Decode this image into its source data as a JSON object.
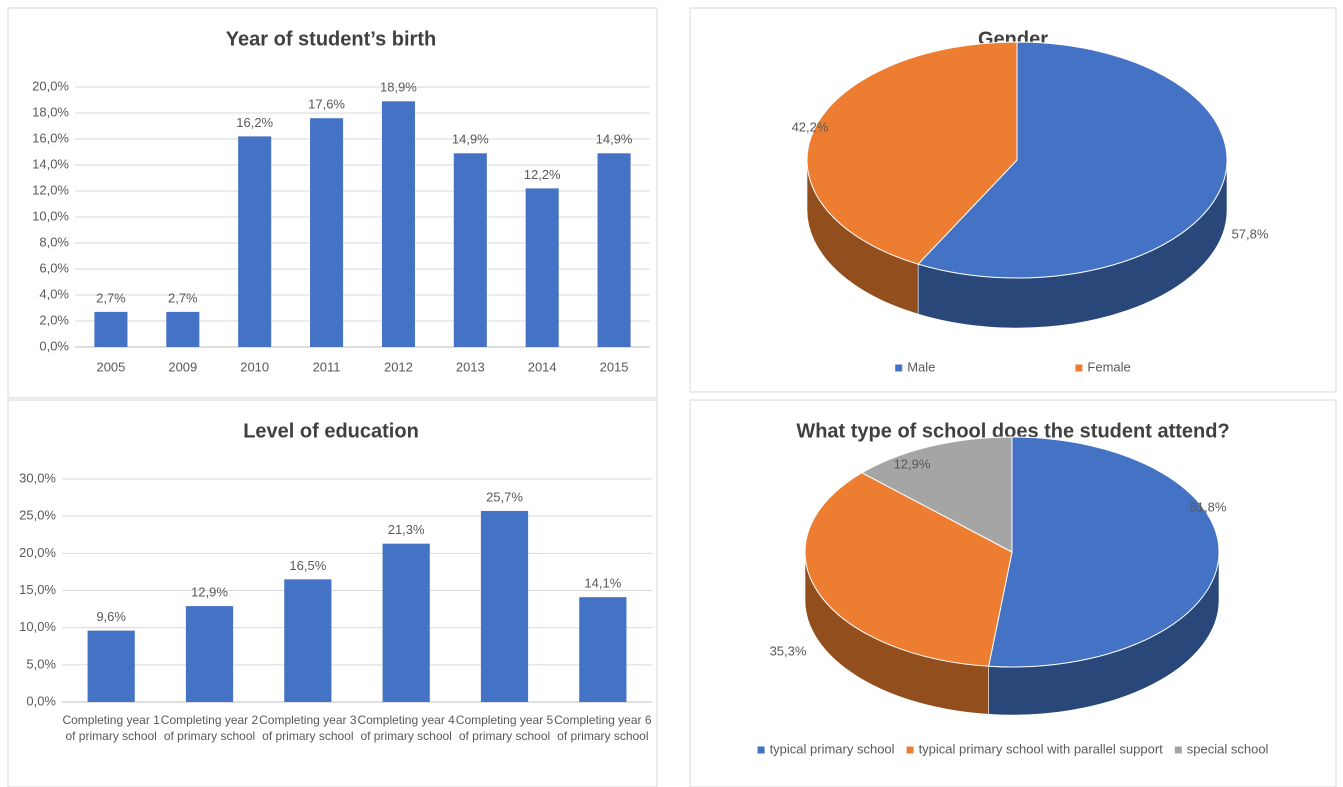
{
  "chart_data": [
    {
      "type": "bar",
      "title": "Year of student’s birth",
      "categories": [
        "2005",
        "2009",
        "2010",
        "2011",
        "2012",
        "2013",
        "2014",
        "2015"
      ],
      "values": [
        2.7,
        2.7,
        16.2,
        17.6,
        18.9,
        14.9,
        12.2,
        14.9
      ],
      "value_labels": [
        "2,7%",
        "2,7%",
        "16,2%",
        "17,6%",
        "18,9%",
        "14,9%",
        "12,2%",
        "14,9%"
      ],
      "color": "#4472c4",
      "ylim": [
        0,
        20
      ],
      "yticks": [
        {
          "value": 0,
          "label": "0,0%"
        },
        {
          "value": 2,
          "label": "2,0%"
        },
        {
          "value": 4,
          "label": "4,0%"
        },
        {
          "value": 6,
          "label": "6,0%"
        },
        {
          "value": 8,
          "label": "8,0%"
        },
        {
          "value": 10,
          "label": "10,0%"
        },
        {
          "value": 12,
          "label": "12,0%"
        },
        {
          "value": 14,
          "label": "14,0%"
        },
        {
          "value": 16,
          "label": "16,0%"
        },
        {
          "value": 18,
          "label": "18,0%"
        },
        {
          "value": 20,
          "label": "20,0%"
        }
      ],
      "grid": true
    },
    {
      "type": "pie",
      "title": "Gender",
      "categories": [
        "Male",
        "Female"
      ],
      "values": [
        57.8,
        42.2
      ],
      "value_labels": [
        "57,8%",
        "42,2%"
      ],
      "colors": [
        "#4472c4",
        "#ed7d31"
      ],
      "legend": "bottom"
    },
    {
      "type": "bar",
      "title": "Level of education",
      "categories": [
        "Completing year 1 of primary school",
        "Completing year 2 of primary school",
        "Completing year 3 of primary school",
        "Completing year 4 of primary school",
        "Completing year 5 of primary school",
        "Completing year 6 of primary school"
      ],
      "values": [
        9.6,
        12.9,
        16.5,
        21.3,
        25.7,
        14.1
      ],
      "value_labels": [
        "9,6%",
        "12,9%",
        "16,5%",
        "21,3%",
        "25,7%",
        "14,1%"
      ],
      "color": "#4472c4",
      "ylim": [
        0,
        30
      ],
      "yticks": [
        {
          "value": 0,
          "label": "0,0%"
        },
        {
          "value": 5,
          "label": "5,0%"
        },
        {
          "value": 10,
          "label": "10,0%"
        },
        {
          "value": 15,
          "label": "15,0%"
        },
        {
          "value": 20,
          "label": "20,0%"
        },
        {
          "value": 25,
          "label": "25,0%"
        },
        {
          "value": 30,
          "label": "30,0%"
        }
      ],
      "grid": true
    },
    {
      "type": "pie",
      "title": "What type of school does the student attend?",
      "categories": [
        "typical primary school",
        "typical primary school with parallel support",
        "special school"
      ],
      "values": [
        51.8,
        35.3,
        12.9
      ],
      "value_labels": [
        "51,8%",
        "35,3%",
        "12,9%"
      ],
      "colors": [
        "#4472c4",
        "#ed7d31",
        "#a5a5a5"
      ],
      "legend": "bottom"
    }
  ]
}
